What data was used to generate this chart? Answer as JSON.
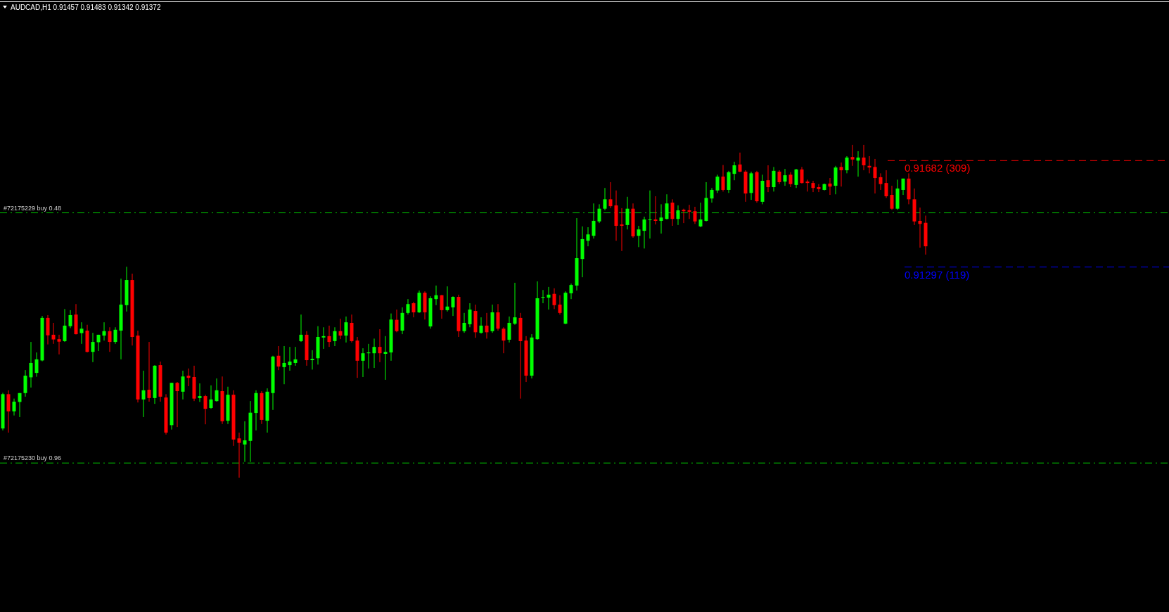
{
  "chart_data": {
    "type": "candlestick",
    "title": "AUDCAD,H1  0.91457 0.91483 0.91342 0.91372",
    "ylim": [
      0.90049,
      0.92263
    ],
    "colors": [
      "#00ff00",
      "#ff0000",
      "#00ff00",
      "#00ff00",
      "#00ff00",
      "#00ff00",
      "#00ff00",
      "#00ff00",
      "#ff0000",
      "#ff0000",
      "#ff0000",
      "#00ff00",
      "#00ff00",
      "#ff0000",
      "#00ff00",
      "#ff0000",
      "#00ff00",
      "#00ff00",
      "#00ff00",
      "#ff0000",
      "#00ff00",
      "#00ff00",
      "#00ff00",
      "#ff0000",
      "#ff0000",
      "#00ff00",
      "#ff0000",
      "#00ff00",
      "#ff0000",
      "#ff0000",
      "#00ff00",
      "#ff0000",
      "#00ff00",
      "#ff0000",
      "#ff0000",
      "#00ff00",
      "#ff0000",
      "#00ff00",
      "#00ff00",
      "#ff0000",
      "#00ff00",
      "#ff0000",
      "#ff0000",
      "#00ff00",
      "#00ff00",
      "#00ff00",
      "#ff0000",
      "#00ff00",
      "#00ff00",
      "#ff0000",
      "#00ff00",
      "#00ff00",
      "#00ff00",
      "#00ff00",
      "#ff0000",
      "#00ff00",
      "#00ff00",
      "#00ff00",
      "#ff0000",
      "#00ff00",
      "#ff0000",
      "#00ff00",
      "#ff0000",
      "#ff0000",
      "#00ff00",
      "#00ff00",
      "#00ff00",
      "#ff0000",
      "#00ff00",
      "#00ff00",
      "#ff0000",
      "#00ff00",
      "#00ff00",
      "#ff0000",
      "#00ff00",
      "#ff0000",
      "#00ff00",
      "#00ff00",
      "#ff0000",
      "#00ff00",
      "#00ff00",
      "#ff0000",
      "#00ff00",
      "#00ff00",
      "#ff0000",
      "#00ff00",
      "#ff0000",
      "#00ff00",
      "#ff0000",
      "#ff0000",
      "#00ff00",
      "#00ff00",
      "#ff0000",
      "#ff0000",
      "#00ff00",
      "#00ff00",
      "#00ff00",
      "#00ff00",
      "#ff0000",
      "#ff0000",
      "#00ff00",
      "#00ff00",
      "#00ff00",
      "#00ff00",
      "#00ff00",
      "#00ff00",
      "#00ff00",
      "#00ff00",
      "#ff0000",
      "#ff0000",
      "#ff0000",
      "#00ff00",
      "#ff0000",
      "#00ff00",
      "#00ff00",
      "#00ff00",
      "#ff0000",
      "#00ff00",
      "#00ff00",
      "#ff0000",
      "#00ff00",
      "#ff0000",
      "#ff0000",
      "#ff0000",
      "#00ff00",
      "#00ff00",
      "#00ff00",
      "#00ff00",
      "#ff0000",
      "#00ff00",
      "#00ff00",
      "#ff0000",
      "#ff0000",
      "#00ff00",
      "#ff0000",
      "#00ff00",
      "#ff0000",
      "#00ff00",
      "#ff0000",
      "#00ff00",
      "#ff0000",
      "#00ff00",
      "#ff0000",
      "#ff0000",
      "#ff0000",
      "#ff0000",
      "#00ff00",
      "#ff0000",
      "#00ff00",
      "#ff0000",
      "#00ff00",
      "#ff0000",
      "#00ff00",
      "#ff0000",
      "#ff0000",
      "#ff0000",
      "#ff0000",
      "#ff0000",
      "#ff0000",
      "#00ff00",
      "#00ff00",
      "#ff0000",
      "#ff0000",
      "#ff0000",
      "#ff0000"
    ],
    "categories": [
      null,
      null,
      null,
      null,
      null,
      null,
      null,
      null,
      null,
      null,
      null,
      null,
      null,
      null,
      null,
      null,
      null,
      null,
      null,
      null,
      null,
      null,
      null,
      null,
      null,
      null,
      null,
      null,
      null,
      null,
      null,
      null,
      null,
      null,
      null,
      null,
      null,
      null,
      null,
      null,
      null,
      null,
      null,
      null,
      null,
      null,
      null,
      null,
      null,
      null,
      null,
      null,
      null,
      null,
      null,
      null,
      null,
      null,
      null,
      null,
      null,
      null,
      null,
      null,
      null,
      null,
      null,
      null,
      null,
      null,
      null,
      null,
      null,
      null,
      null,
      null,
      null,
      null,
      null,
      null,
      null,
      null,
      null,
      null,
      null,
      null,
      null,
      null,
      null,
      null,
      null,
      null,
      null,
      null,
      null,
      null,
      null,
      null,
      null,
      null,
      null,
      null,
      null,
      null,
      null,
      null,
      null,
      null,
      null,
      null,
      null,
      null,
      null,
      null,
      null,
      null,
      null,
      null,
      null,
      null,
      null,
      null,
      null,
      null,
      null,
      null,
      null,
      null,
      null,
      null,
      null,
      null,
      null,
      null,
      null,
      null,
      null,
      null,
      null,
      null,
      null,
      null,
      null,
      null,
      null,
      null,
      null,
      null,
      null,
      null,
      null,
      null,
      null,
      null,
      null,
      null,
      null,
      null,
      null,
      null,
      null,
      null,
      null,
      null,
      null
    ],
    "ohlc": [
      [
        0.90713,
        0.90842,
        0.90706,
        0.90837
      ],
      [
        0.90837,
        0.90851,
        0.90698,
        0.90775
      ],
      [
        0.90775,
        0.90821,
        0.9076,
        0.9081
      ],
      [
        0.90809,
        0.90841,
        0.90754,
        0.90841
      ],
      [
        0.90841,
        0.90924,
        0.90828,
        0.90904
      ],
      [
        0.90898,
        0.91026,
        0.90861,
        0.9095
      ],
      [
        0.90914,
        0.90988,
        0.909,
        0.90963
      ],
      [
        0.90959,
        0.9112,
        0.90956,
        0.91113
      ],
      [
        0.91113,
        0.91123,
        0.91017,
        0.9105
      ],
      [
        0.91052,
        0.91095,
        0.91019,
        0.91035
      ],
      [
        0.91036,
        0.91052,
        0.90981,
        0.91027
      ],
      [
        0.91029,
        0.91145,
        0.91026,
        0.91085
      ],
      [
        0.91083,
        0.91141,
        0.91076,
        0.91123
      ],
      [
        0.91125,
        0.91163,
        0.91053,
        0.91054
      ],
      [
        0.91058,
        0.91097,
        0.91019,
        0.91074
      ],
      [
        0.91067,
        0.91088,
        0.90988,
        0.9099
      ],
      [
        0.9099,
        0.91059,
        0.90953,
        0.91026
      ],
      [
        0.91025,
        0.91052,
        0.90993,
        0.91052
      ],
      [
        0.91049,
        0.91097,
        0.91031,
        0.91065
      ],
      [
        0.91065,
        0.91079,
        0.9099,
        0.91026
      ],
      [
        0.91026,
        0.91079,
        0.91019,
        0.9107
      ],
      [
        0.91067,
        0.91255,
        0.90963,
        0.91161
      ],
      [
        0.91159,
        0.91298,
        0.91136,
        0.9125
      ],
      [
        0.9125,
        0.91273,
        0.91013,
        0.91044
      ],
      [
        0.91049,
        0.91067,
        0.90807,
        0.90818
      ],
      [
        0.90818,
        0.90922,
        0.90754,
        0.90851
      ],
      [
        0.90853,
        0.91026,
        0.9081,
        0.90823
      ],
      [
        0.90823,
        0.90942,
        0.90802,
        0.9094
      ],
      [
        0.90942,
        0.90955,
        0.9081,
        0.90828
      ],
      [
        0.90825,
        0.90837,
        0.90691,
        0.90698
      ],
      [
        0.90725,
        0.90878,
        0.90709,
        0.90878
      ],
      [
        0.90878,
        0.90881,
        0.90718,
        0.90848
      ],
      [
        0.90846,
        0.90922,
        0.90818,
        0.90901
      ],
      [
        0.90904,
        0.9093,
        0.90866,
        0.90896
      ],
      [
        0.90899,
        0.9094,
        0.90812,
        0.90821
      ],
      [
        0.90823,
        0.90876,
        0.90809,
        0.9083
      ],
      [
        0.9083,
        0.90835,
        0.90728,
        0.90784
      ],
      [
        0.90787,
        0.90869,
        0.90784,
        0.90818
      ],
      [
        0.90812,
        0.90894,
        0.9081,
        0.90851
      ],
      [
        0.90848,
        0.90901,
        0.90729,
        0.90739
      ],
      [
        0.90741,
        0.90864,
        0.90729,
        0.90835
      ],
      [
        0.90835,
        0.90851,
        0.9065,
        0.90673
      ],
      [
        0.90677,
        0.90698,
        0.90535,
        0.90661
      ],
      [
        0.90655,
        0.90739,
        0.90592,
        0.9067
      ],
      [
        0.90668,
        0.90812,
        0.90592,
        0.9077
      ],
      [
        0.90769,
        0.90851,
        0.90706,
        0.90841
      ],
      [
        0.90841,
        0.90848,
        0.90729,
        0.90744
      ],
      [
        0.90741,
        0.90858,
        0.90698,
        0.90846
      ],
      [
        0.90841,
        0.90976,
        0.9078,
        0.90973
      ],
      [
        0.90976,
        0.91011,
        0.90924,
        0.90937
      ],
      [
        0.90935,
        0.91011,
        0.90873,
        0.9095
      ],
      [
        0.90942,
        0.91008,
        0.90922,
        0.90955
      ],
      [
        0.9095,
        0.91008,
        0.9094,
        0.90963
      ],
      [
        0.91029,
        0.91125,
        0.91026,
        0.91052
      ],
      [
        0.91052,
        0.91065,
        0.9094,
        0.9096
      ],
      [
        0.9096,
        0.90996,
        0.90926,
        0.90965
      ],
      [
        0.90967,
        0.91083,
        0.90944,
        0.91044
      ],
      [
        0.91042,
        0.91079,
        0.91001,
        0.91047
      ],
      [
        0.91047,
        0.91085,
        0.91008,
        0.91026
      ],
      [
        0.91029,
        0.91079,
        0.91011,
        0.91065
      ],
      [
        0.91065,
        0.9111,
        0.91036,
        0.91049
      ],
      [
        0.91049,
        0.91118,
        0.91024,
        0.91097
      ],
      [
        0.91095,
        0.91125,
        0.91024,
        0.91029
      ],
      [
        0.91031,
        0.91044,
        0.90896,
        0.90958
      ],
      [
        0.90958,
        0.91003,
        0.90899,
        0.90985
      ],
      [
        0.90985,
        0.91019,
        0.9093,
        0.90988
      ],
      [
        0.90985,
        0.91038,
        0.90932,
        0.91008
      ],
      [
        0.91008,
        0.91072,
        0.90953,
        0.90985
      ],
      [
        0.90983,
        0.91047,
        0.90889,
        0.9099
      ],
      [
        0.90988,
        0.91129,
        0.90958,
        0.91107
      ],
      [
        0.91106,
        0.91143,
        0.91061,
        0.91065
      ],
      [
        0.91067,
        0.91151,
        0.91054,
        0.91131
      ],
      [
        0.91131,
        0.91181,
        0.91125,
        0.91163
      ],
      [
        0.91166,
        0.91171,
        0.91115,
        0.91133
      ],
      [
        0.91133,
        0.91212,
        0.91131,
        0.91204
      ],
      [
        0.91204,
        0.91209,
        0.91107,
        0.91133
      ],
      [
        0.91082,
        0.91191,
        0.91074,
        0.91184
      ],
      [
        0.91181,
        0.9123,
        0.91159,
        0.91195
      ],
      [
        0.91195,
        0.91196,
        0.9111,
        0.91141
      ],
      [
        0.91141,
        0.91227,
        0.91136,
        0.91154
      ],
      [
        0.91151,
        0.91191,
        0.9112,
        0.91189
      ],
      [
        0.91189,
        0.91197,
        0.91044,
        0.91065
      ],
      [
        0.91065,
        0.91131,
        0.91059,
        0.91095
      ],
      [
        0.9109,
        0.91166,
        0.91079,
        0.91143
      ],
      [
        0.91138,
        0.91161,
        0.91041,
        0.91061
      ],
      [
        0.91059,
        0.91115,
        0.91056,
        0.91085
      ],
      [
        0.91085,
        0.91131,
        0.91038,
        0.91061
      ],
      [
        0.91065,
        0.91161,
        0.91059,
        0.91133
      ],
      [
        0.91133,
        0.91163,
        0.91067,
        0.91074
      ],
      [
        0.91074,
        0.91079,
        0.90985,
        0.91031
      ],
      [
        0.91034,
        0.91118,
        0.91024,
        0.91095
      ],
      [
        0.91092,
        0.9124,
        0.91088,
        0.91115
      ],
      [
        0.91113,
        0.91131,
        0.90821,
        0.91029
      ],
      [
        0.91031,
        0.91047,
        0.90881,
        0.90904
      ],
      [
        0.90904,
        0.91054,
        0.90894,
        0.91042
      ],
      [
        0.91036,
        0.91245,
        0.91034,
        0.91184
      ],
      [
        0.91186,
        0.91214,
        0.91166,
        0.91189
      ],
      [
        0.91186,
        0.91225,
        0.91143,
        0.91197
      ],
      [
        0.912,
        0.9122,
        0.91145,
        0.91159
      ],
      [
        0.91161,
        0.91195,
        0.91125,
        0.91131
      ],
      [
        0.91092,
        0.91209,
        0.9109,
        0.91204
      ],
      [
        0.91202,
        0.91237,
        0.91181,
        0.91232
      ],
      [
        0.9123,
        0.91474,
        0.91212,
        0.91329
      ],
      [
        0.91326,
        0.91444,
        0.9126,
        0.91398
      ],
      [
        0.91392,
        0.91441,
        0.91372,
        0.91415
      ],
      [
        0.9141,
        0.91527,
        0.914,
        0.91464
      ],
      [
        0.91462,
        0.91524,
        0.91456,
        0.91508
      ],
      [
        0.91508,
        0.91583,
        0.91502,
        0.91542
      ],
      [
        0.91542,
        0.91604,
        0.9151,
        0.91517
      ],
      [
        0.9152,
        0.91574,
        0.91392,
        0.91446
      ],
      [
        0.91451,
        0.9151,
        0.91355,
        0.91446
      ],
      [
        0.91449,
        0.91551,
        0.91433,
        0.91508
      ],
      [
        0.91508,
        0.91527,
        0.91403,
        0.91408
      ],
      [
        0.9141,
        0.91446,
        0.91369,
        0.91433
      ],
      [
        0.91428,
        0.91479,
        0.91364,
        0.91469
      ],
      [
        0.91467,
        0.91574,
        0.914,
        0.91469
      ],
      [
        0.91469,
        0.91553,
        0.91451,
        0.91464
      ],
      [
        0.91464,
        0.91524,
        0.91418,
        0.91476
      ],
      [
        0.91471,
        0.9156,
        0.91469,
        0.91527
      ],
      [
        0.9153,
        0.91542,
        0.91446,
        0.91471
      ],
      [
        0.91471,
        0.9152,
        0.91449,
        0.91502
      ],
      [
        0.91504,
        0.91508,
        0.91456,
        0.91499
      ],
      [
        0.91502,
        0.91522,
        0.91471,
        0.91497
      ],
      [
        0.91499,
        0.91515,
        0.91453,
        0.91462
      ],
      [
        0.91444,
        0.9153,
        0.91441,
        0.91469
      ],
      [
        0.91464,
        0.91604,
        0.91462,
        0.91547
      ],
      [
        0.91545,
        0.91583,
        0.9153,
        0.91576
      ],
      [
        0.91574,
        0.91631,
        0.91565,
        0.91624
      ],
      [
        0.91624,
        0.91666,
        0.9157,
        0.91576
      ],
      [
        0.91576,
        0.91645,
        0.91565,
        0.9164
      ],
      [
        0.91634,
        0.91678,
        0.91611,
        0.91665
      ],
      [
        0.91668,
        0.91711,
        0.9164,
        0.91642
      ],
      [
        0.91642,
        0.91647,
        0.91533,
        0.91563
      ],
      [
        0.91565,
        0.91642,
        0.9154,
        0.91636
      ],
      [
        0.9164,
        0.91645,
        0.9153,
        0.91535
      ],
      [
        0.91533,
        0.91631,
        0.91524,
        0.91609
      ],
      [
        0.91611,
        0.91665,
        0.91568,
        0.91586
      ],
      [
        0.91586,
        0.91659,
        0.9157,
        0.91645
      ],
      [
        0.91642,
        0.91647,
        0.91597,
        0.91604
      ],
      [
        0.91606,
        0.91652,
        0.91591,
        0.91629
      ],
      [
        0.91631,
        0.9164,
        0.91586,
        0.91597
      ],
      [
        0.91594,
        0.91652,
        0.91583,
        0.9165
      ],
      [
        0.9165,
        0.91659,
        0.91599,
        0.91601
      ],
      [
        0.91606,
        0.91613,
        0.9157,
        0.91601
      ],
      [
        0.91601,
        0.91609,
        0.91568,
        0.91583
      ],
      [
        0.91586,
        0.91597,
        0.91568,
        0.91579
      ],
      [
        0.91576,
        0.91599,
        0.91574,
        0.91597
      ],
      [
        0.91599,
        0.91619,
        0.91558,
        0.91588
      ],
      [
        0.91591,
        0.91663,
        0.9156,
        0.91657
      ],
      [
        0.91659,
        0.91675,
        0.91588,
        0.91647
      ],
      [
        0.91647,
        0.91698,
        0.91636,
        0.91693
      ],
      [
        0.91695,
        0.91739,
        0.91663,
        0.91686
      ],
      [
        0.91682,
        0.91716,
        0.91624,
        0.91693
      ],
      [
        0.91693,
        0.91739,
        0.91647,
        0.91665
      ],
      [
        0.91663,
        0.91698,
        0.91636,
        0.91657
      ],
      [
        0.91659,
        0.91688,
        0.91563,
        0.91619
      ],
      [
        0.91622,
        0.91636,
        0.91576,
        0.91597
      ],
      [
        0.91601,
        0.91647,
        0.91547,
        0.91553
      ],
      [
        0.91558,
        0.91591,
        0.91504,
        0.91508
      ],
      [
        0.91508,
        0.91613,
        0.91504,
        0.91581
      ],
      [
        0.91576,
        0.91617,
        0.91558,
        0.91617
      ],
      [
        0.91617,
        0.91636,
        0.91524,
        0.91542
      ],
      [
        0.91542,
        0.91581,
        0.91449,
        0.91462
      ],
      [
        0.91464,
        0.91512,
        0.91367,
        0.91453
      ],
      [
        0.91457,
        0.91483,
        0.91342,
        0.91372
      ]
    ],
    "ref_lines": [
      {
        "axis": "y",
        "value": 0.91682,
        "label": "0.91682 (309)",
        "color": "#ff0000",
        "line_style": "dashed"
      },
      {
        "axis": "y",
        "value": 0.91297,
        "label": "0.91297 (119)",
        "color": "#0000ff",
        "line_style": "dashed"
      },
      {
        "axis": "y",
        "value": 0.91493,
        "label": "#72175229 buy 0.48",
        "color": "#00c800",
        "line_style": "dashdot"
      },
      {
        "axis": "y",
        "value": 0.90588,
        "label": "#72175230 buy 0.96",
        "color": "#00c800",
        "line_style": "dashdot"
      }
    ]
  }
}
